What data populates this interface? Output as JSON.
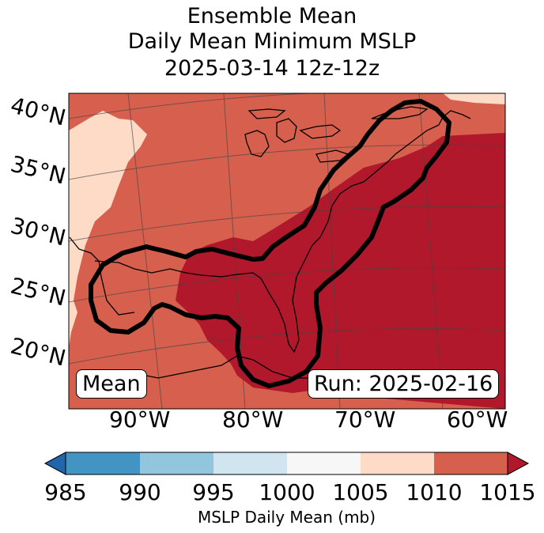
{
  "title": {
    "line1": "Ensemble Mean",
    "line2": "Daily Mean Minimum MSLP",
    "line3": "2025-03-14 12z-12z"
  },
  "map": {
    "lat_labels": [
      "40°N",
      "35°N",
      "30°N",
      "25°N",
      "20°N"
    ],
    "lon_labels": [
      "90°W",
      "80°W",
      "70°W",
      "60°W"
    ],
    "mean_label": "Mean",
    "run_label": "Run: 2025-02-16",
    "colors": {
      "c1010_1015": "#b2182b",
      "c1005_1010": "#d6604d",
      "c1000_1005": "#fddbc7",
      "c995_1000": "#f7f7f7",
      "c990_995": "#d1e5f0",
      "c985_990": "#92c5de",
      "c_lt_985": "#4393c3",
      "c_gt_1015": "#b2182b"
    }
  },
  "colorbar": {
    "ticks": [
      "985",
      "990",
      "995",
      "1000",
      "1005",
      "1010",
      "1015"
    ],
    "label": "MSLP Daily Mean (mb)"
  }
}
